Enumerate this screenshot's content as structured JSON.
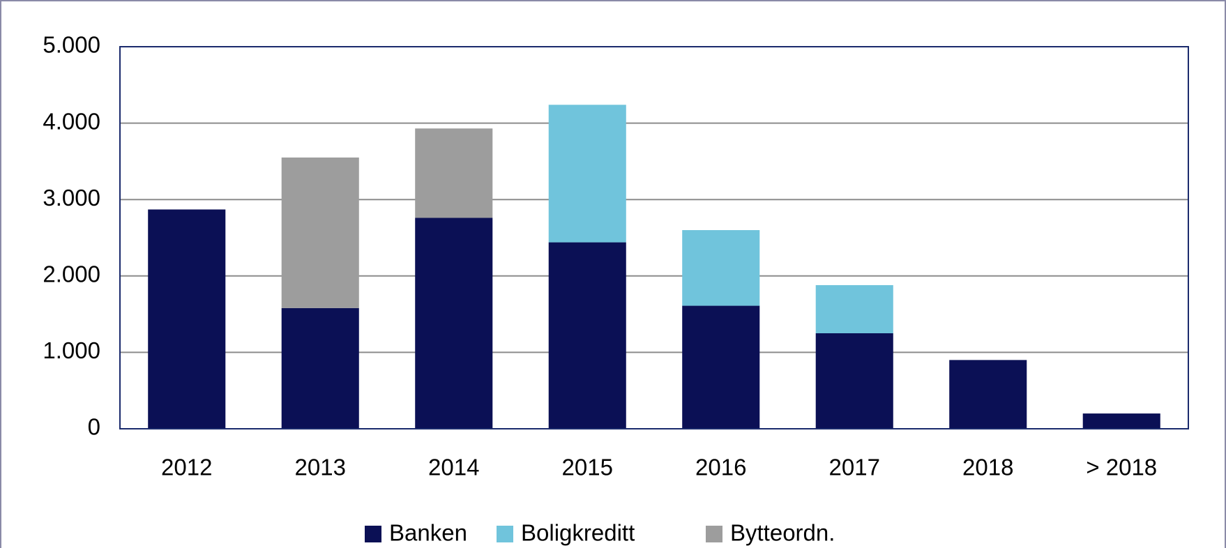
{
  "chart_data": {
    "type": "stacked_bar",
    "categories": [
      "2012",
      "2013",
      "2014",
      "2015",
      "2016",
      "2017",
      "2018",
      "> 2018"
    ],
    "series": [
      {
        "name": "Banken",
        "color": "#0b1055",
        "values": [
          2870,
          1580,
          2760,
          2440,
          1610,
          1250,
          900,
          200
        ]
      },
      {
        "name": "Boligkreditt",
        "color": "#70c4dc",
        "values": [
          null,
          null,
          null,
          1800,
          990,
          630,
          null,
          null
        ]
      },
      {
        "name": "Bytteordn.",
        "color": "#9d9d9d",
        "values": [
          null,
          1970,
          1170,
          null,
          null,
          null,
          null,
          null
        ]
      }
    ],
    "ylim": [
      0,
      5000
    ],
    "yticks": [
      0,
      {
        "value": 1000,
        "label": "1.000"
      },
      {
        "value": 2000,
        "label": "2.000"
      },
      {
        "value": 3000,
        "label": "3.000"
      },
      {
        "value": 4000,
        "label": "4.000"
      },
      {
        "value": 5000,
        "label": "5.000"
      }
    ],
    "grid": true,
    "legend": "bottom"
  }
}
